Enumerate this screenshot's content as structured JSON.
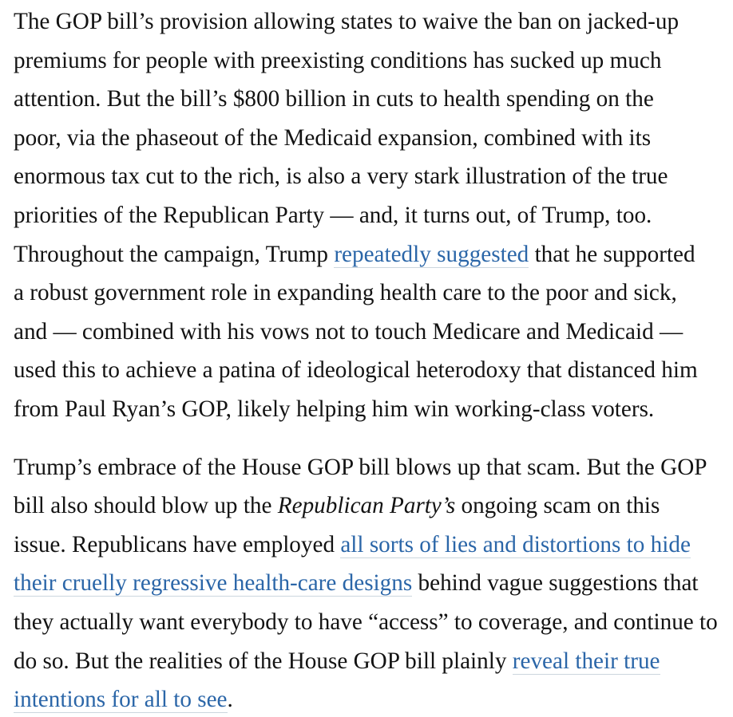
{
  "page": {
    "background": "#ffffff",
    "text_color": "#131313",
    "link_color": "#2b66a8",
    "link_underline_color": "#ccd6de"
  },
  "article": {
    "paragraphs": [
      {
        "segments": [
          {
            "style": "text",
            "text": "The GOP bill’s provision allowing states to waive the ban on jacked-up\npremiums for people with preexisting conditions has sucked up much\nattention. But the bill’s $800 billion in cuts to health spending on the\npoor, via the phaseout of the Medicaid expansion, combined with its\nenormous tax cut to the rich, is also a very stark illustration of the true\npriorities of the Republican Party — and, it turns out, of Trump, too.\nThroughout the campaign, Trump "
          },
          {
            "style": "link",
            "name": "link-repeatedly-suggested",
            "text": "repeatedly suggested"
          },
          {
            "style": "text",
            "text": " that he supported\na robust government role in expanding health care to the poor and sick,\nand — combined with his vows not to touch Medicare and Medicaid —\nused this to achieve a patina of ideological heterodoxy that distanced him\nfrom Paul Ryan’s GOP, likely helping him win working-class voters."
          }
        ]
      },
      {
        "segments": [
          {
            "style": "text",
            "text": "Trump’s embrace of the House GOP bill blows up that scam. But the GOP\nbill also should blow up the "
          },
          {
            "style": "italic",
            "name": "italic-republican-partys",
            "text": "Republican Party’s"
          },
          {
            "style": "text",
            "text": " ongoing scam on this\nissue. Republicans have employed "
          },
          {
            "style": "link",
            "name": "link-lies-and-distortions",
            "text": "all sorts of lies and distortions to hide\ntheir cruelly regressive health-care designs"
          },
          {
            "style": "text",
            "text": " behind vague suggestions that\nthey actually want everybody to have “access” to coverage, and continue to\ndo so. But the realities of the House GOP bill plainly "
          },
          {
            "style": "link",
            "name": "link-reveal-true-intentions",
            "text": "reveal their true\nintentions for all to see"
          },
          {
            "style": "text",
            "text": "."
          }
        ]
      }
    ]
  }
}
